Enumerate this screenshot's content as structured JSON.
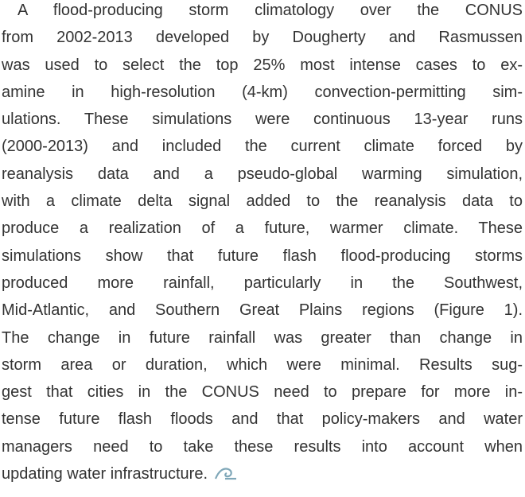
{
  "paragraph": {
    "lines": [
      "A flood-producing storm climatology over the CONUS",
      "from 2002-2013 developed by Dougherty and Rasmussen",
      "was used to select the top 25% most intense cases to ex-",
      "amine in high-resolution (4-km) convection-permitting sim-",
      "ulations. These simulations were continuous 13-year runs",
      "(2000-2013) and included the current climate forced by",
      "reanalysis data and a pseudo-global warming simulation,",
      "with a climate delta signal added to the reanalysis data to",
      "produce a realization of a future, warmer climate. These",
      "simulations show that future flash flood-producing storms",
      "produced more rainfall, particularly in the Southwest,",
      "Mid-Atlantic, and Southern Great Plains regions (Figure 1).",
      "The change in future rainfall was greater than change in",
      "storm area or duration, which were minimal. Results sug-",
      "gest that cities in the CONUS need to prepare for more in-",
      "tense future flash floods and that policy-makers and water",
      "managers need to take these results into account when",
      "updating water infrastructure."
    ]
  }
}
